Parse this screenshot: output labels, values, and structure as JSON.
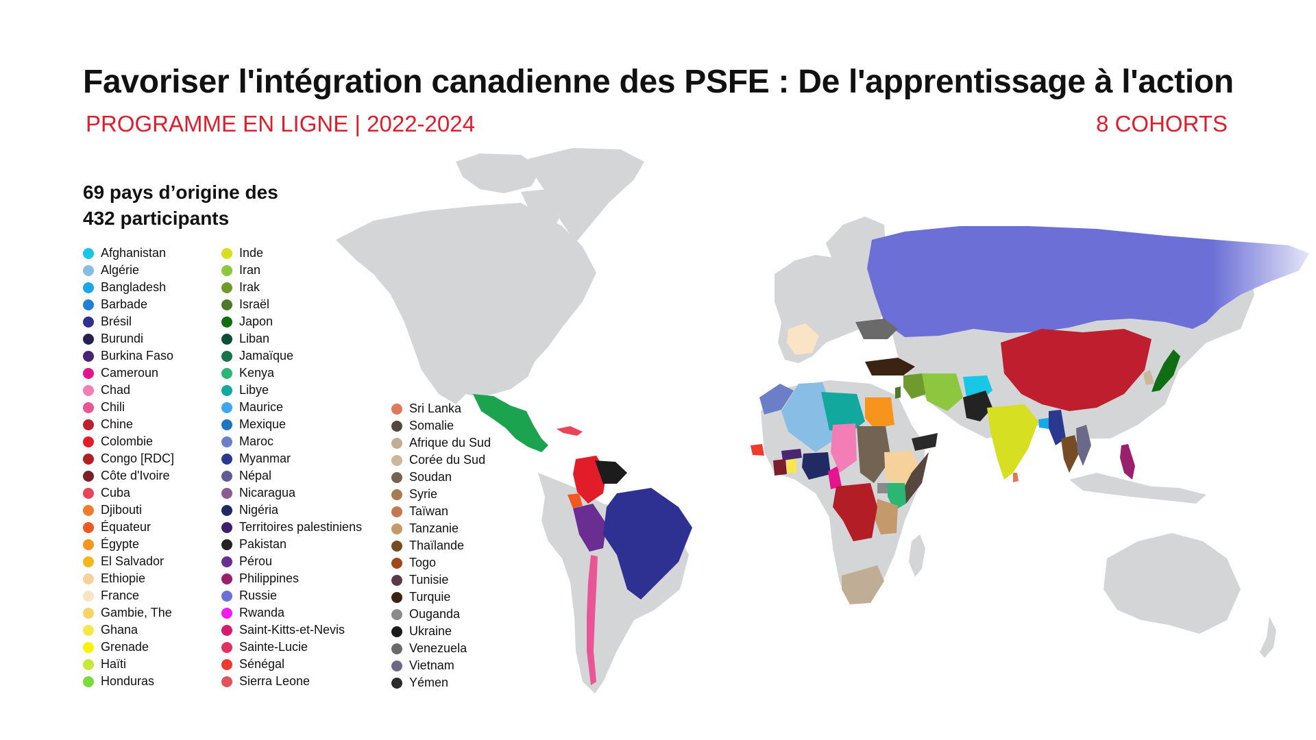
{
  "title": "Favoriser l'intégration canadienne des PSFE : De l'apprentissage à l'action",
  "subtitle_left": "PROGRAMME EN LIGNE | 2022-2024",
  "subtitle_right": "8 COHORTS",
  "legend_heading": [
    "69 pays d’origine des",
    "432 participants"
  ],
  "colors": {
    "base_land": "#d4d5d7",
    "accent_red": "#dc1e2e"
  },
  "legend": {
    "columns": [
      [
        {
          "name": "Afghanistan",
          "color": "#18c7e6"
        },
        {
          "name": "Algérie",
          "color": "#88bde6"
        },
        {
          "name": "Bangladesh",
          "color": "#1aa7e8"
        },
        {
          "name": "Barbade",
          "color": "#1f7fd6"
        },
        {
          "name": "Brésil",
          "color": "#2e3192"
        },
        {
          "name": "Burundi",
          "color": "#262050"
        },
        {
          "name": "Burkina Faso",
          "color": "#4a2373"
        },
        {
          "name": "Cameroun",
          "color": "#e6158f"
        },
        {
          "name": "Chad",
          "color": "#f37db5"
        },
        {
          "name": "Chili",
          "color": "#e85693"
        },
        {
          "name": "Chine",
          "color": "#be1e2d"
        },
        {
          "name": "Colombie",
          "color": "#e11d2a"
        },
        {
          "name": "Congo [RDC]",
          "color": "#b31e26"
        },
        {
          "name": "Côte d'Ivoire",
          "color": "#7d1e2b"
        },
        {
          "name": "Cuba",
          "color": "#ea4458"
        },
        {
          "name": "Djibouti",
          "color": "#f57b2c"
        },
        {
          "name": "Équateur",
          "color": "#f05a22"
        },
        {
          "name": "Égypte",
          "color": "#f7941d"
        },
        {
          "name": "El Salvador",
          "color": "#f7b718"
        },
        {
          "name": "Ethiopie",
          "color": "#f6d19b"
        },
        {
          "name": "France",
          "color": "#fbe3c6"
        },
        {
          "name": "Gambie, The",
          "color": "#f8d468"
        },
        {
          "name": "Ghana",
          "color": "#f8e64a"
        },
        {
          "name": "Grenade",
          "color": "#fff200"
        },
        {
          "name": "Haïti",
          "color": "#c6e83a"
        },
        {
          "name": "Honduras",
          "color": "#7cdb3c"
        }
      ],
      [
        {
          "name": "Inde",
          "color": "#d7df23"
        },
        {
          "name": "Iran",
          "color": "#8dc63f"
        },
        {
          "name": "Irak",
          "color": "#6e9a2e"
        },
        {
          "name": "Israël",
          "color": "#4c7a2a"
        },
        {
          "name": "Japon",
          "color": "#0f6e14"
        },
        {
          "name": "Liban",
          "color": "#0a4f35"
        },
        {
          "name": "Jamaïque",
          "color": "#17734a"
        },
        {
          "name": "Kenya",
          "color": "#2bb673"
        },
        {
          "name": "Libye",
          "color": "#12a89d"
        },
        {
          "name": "Maurice",
          "color": "#3ea6ec"
        },
        {
          "name": "Mexique",
          "color": "#1d75bc"
        },
        {
          "name": "Maroc",
          "color": "#6b7fc8"
        },
        {
          "name": "Myanmar",
          "color": "#2b3890"
        },
        {
          "name": "Népal",
          "color": "#615b94"
        },
        {
          "name": "Nicaragua",
          "color": "#8a5a95"
        },
        {
          "name": "Nigéria",
          "color": "#222a63"
        },
        {
          "name": "Territoires palestiniens",
          "color": "#3d1f6e"
        },
        {
          "name": "Pakistan",
          "color": "#232323"
        },
        {
          "name": "Pérou",
          "color": "#6a2d91"
        },
        {
          "name": "Philippines",
          "color": "#9a1f6c"
        },
        {
          "name": "Russie",
          "color": "#6b6fd6"
        },
        {
          "name": "Rwanda",
          "color": "#f21bf0"
        },
        {
          "name": "Saint-Kitts-et-Nevis",
          "color": "#d61a6f"
        },
        {
          "name": "Sainte-Lucie",
          "color": "#e3315f"
        },
        {
          "name": "Sénégal",
          "color": "#ef3a2d"
        },
        {
          "name": "Sierra Leone",
          "color": "#e05260"
        }
      ],
      [
        {
          "name": "Sri Lanka",
          "color": "#e0785c"
        },
        {
          "name": "Somalie",
          "color": "#55463e"
        },
        {
          "name": "Afrique du Sud",
          "color": "#c0ad96"
        },
        {
          "name": "Corée du Sud",
          "color": "#cbb79b"
        },
        {
          "name": "Soudan",
          "color": "#736353"
        },
        {
          "name": "Syrie",
          "color": "#a67c52"
        },
        {
          "name": "Taïwan",
          "color": "#c47852"
        },
        {
          "name": "Tanzanie",
          "color": "#c49a6c"
        },
        {
          "name": "Thaïlande",
          "color": "#754c24"
        },
        {
          "name": "Togo",
          "color": "#a0471b"
        },
        {
          "name": "Tunisie",
          "color": "#5a3a4a"
        },
        {
          "name": "Turquie",
          "color": "#3b2314"
        },
        {
          "name": "Ouganda",
          "color": "#8a8a8a"
        },
        {
          "name": "Ukraine",
          "color": "#1c1c1c"
        },
        {
          "name": "Venezuela",
          "color": "#6a6a6a"
        },
        {
          "name": "Vietnam",
          "color": "#6a6a88"
        },
        {
          "name": "Yémen",
          "color": "#2a2a2a"
        }
      ]
    ]
  }
}
